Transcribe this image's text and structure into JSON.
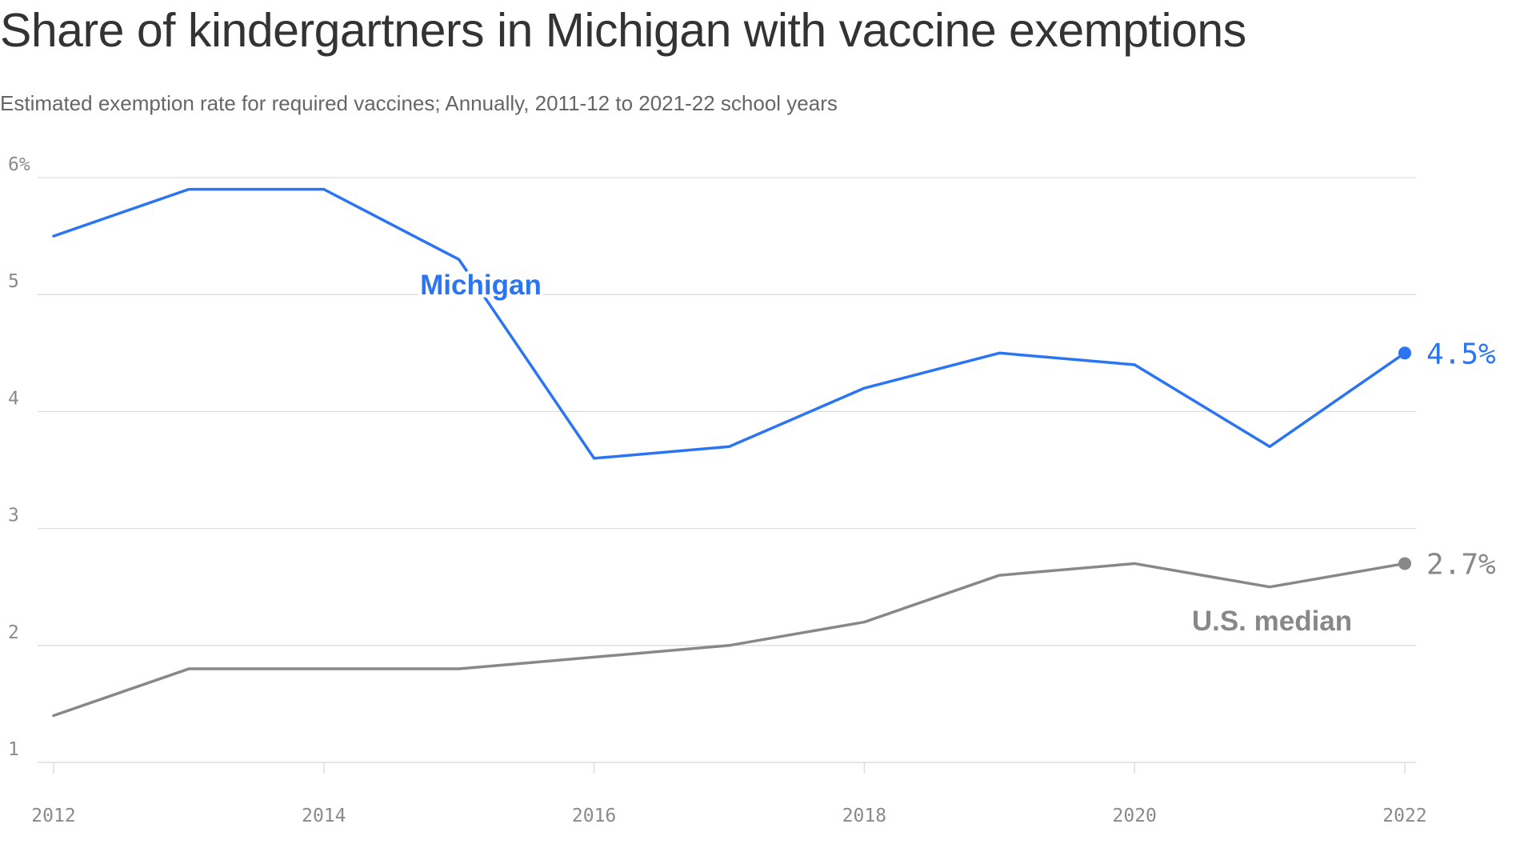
{
  "chart_data": {
    "type": "line",
    "title": "Share of kindergartners in Michigan with vaccine exemptions",
    "subtitle": "Estimated exemption rate for required vaccines; Annually, 2011-12 to 2021-22 school years",
    "x": [
      2012,
      2013,
      2014,
      2015,
      2016,
      2017,
      2018,
      2019,
      2020,
      2021,
      2022
    ],
    "x_ticks": [
      "2012",
      "2014",
      "2016",
      "2018",
      "2020",
      "2022"
    ],
    "y_ticks": [
      "1",
      "2",
      "3",
      "4",
      "5",
      "6%"
    ],
    "ylim": [
      1,
      6
    ],
    "xlim": [
      2012,
      2022
    ],
    "grid": "horizontal",
    "series": [
      {
        "name": "Michigan",
        "color": "#2b74f2",
        "values": [
          5.5,
          5.9,
          5.9,
          5.3,
          3.6,
          3.7,
          4.2,
          4.5,
          4.4,
          3.7,
          4.5
        ],
        "end_label": "4.5%"
      },
      {
        "name": "U.S. median",
        "color": "#888888",
        "values": [
          1.4,
          1.8,
          1.8,
          1.8,
          1.9,
          2.0,
          2.2,
          2.6,
          2.7,
          2.5,
          2.7
        ],
        "end_label": "2.7%"
      }
    ]
  }
}
